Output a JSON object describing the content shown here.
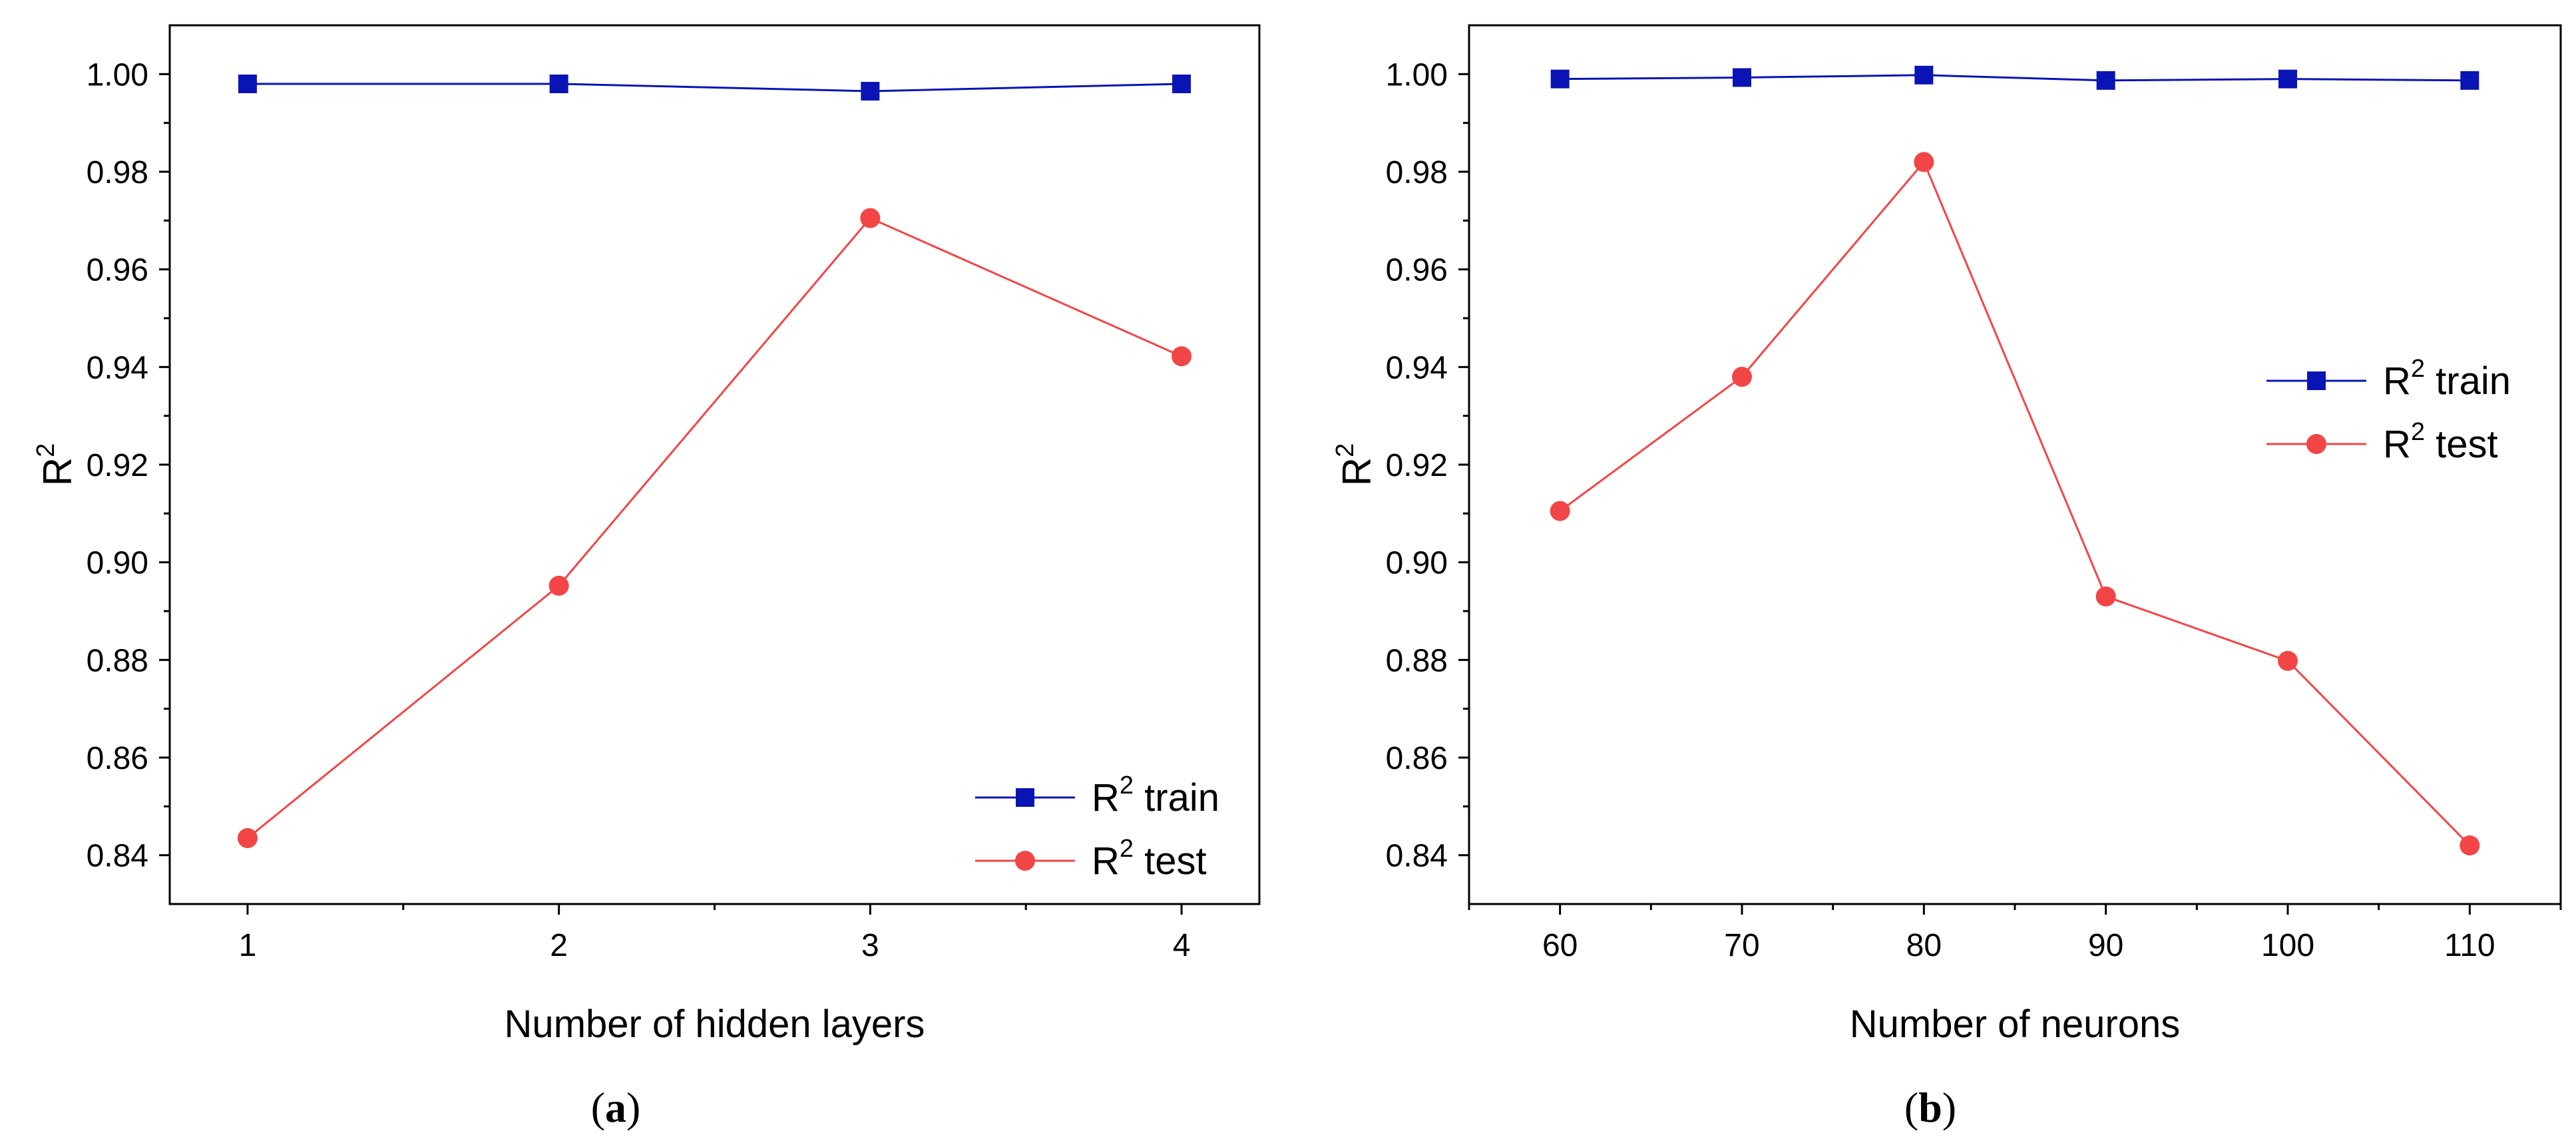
{
  "colors": {
    "train": "#0a14b4",
    "test": "#f24545",
    "axis": "#000000"
  },
  "series_labels": {
    "train_base": "R",
    "train_sup": "2",
    "train_rest": " train",
    "test_base": "R",
    "test_sup": "2",
    "test_rest": " test"
  },
  "chart_data": [
    {
      "type": "line",
      "panel": "(a)",
      "panel_parts": {
        "open": "(",
        "letter": "a",
        "close": ")"
      },
      "xlabel": "Number of hidden layers",
      "ylabel": {
        "base": "R",
        "sup": "2"
      },
      "x": [
        1,
        2,
        3,
        4
      ],
      "xlim": [
        0.75,
        4.25
      ],
      "xticks": [
        1,
        2,
        3,
        4
      ],
      "xminor": [
        1.5,
        2.5,
        3.5
      ],
      "ylim": [
        0.83,
        1.01
      ],
      "yticks": [
        0.84,
        0.86,
        0.88,
        0.9,
        0.92,
        0.94,
        0.96,
        0.98,
        1.0
      ],
      "ytick_labels": [
        "0.84",
        "0.86",
        "0.88",
        "0.90",
        "0.92",
        "0.94",
        "0.96",
        "0.98",
        "1.00"
      ],
      "series": [
        {
          "name": "R2 train",
          "key": "train",
          "marker": "square",
          "values": [
            0.998,
            0.998,
            0.9965,
            0.998
          ]
        },
        {
          "name": "R2 test",
          "key": "test",
          "marker": "circle",
          "values": [
            0.8435,
            0.8952,
            0.9705,
            0.9422
          ]
        }
      ],
      "legend": "bottom-right"
    },
    {
      "type": "line",
      "panel": "(b)",
      "panel_parts": {
        "open": "(",
        "letter": "b",
        "close": ")"
      },
      "xlabel": "Number of neurons",
      "ylabel": {
        "base": "R",
        "sup": "2"
      },
      "x": [
        60,
        70,
        80,
        90,
        100,
        110
      ],
      "xlim": [
        55,
        115
      ],
      "xticks": [
        60,
        70,
        80,
        90,
        100,
        110
      ],
      "xminor": [
        55,
        65,
        75,
        85,
        95,
        105,
        115
      ],
      "ylim": [
        0.83,
        1.01
      ],
      "yticks": [
        0.84,
        0.86,
        0.88,
        0.9,
        0.92,
        0.94,
        0.96,
        0.98,
        1.0
      ],
      "ytick_labels": [
        "0.84",
        "0.86",
        "0.88",
        "0.90",
        "0.92",
        "0.94",
        "0.96",
        "0.98",
        "1.00"
      ],
      "series": [
        {
          "name": "R2 train",
          "key": "train",
          "marker": "square",
          "values": [
            0.999,
            0.9993,
            0.9998,
            0.9987,
            0.999,
            0.9987
          ]
        },
        {
          "name": "R2 test",
          "key": "test",
          "marker": "circle",
          "values": [
            0.9105,
            0.938,
            0.982,
            0.893,
            0.8798,
            0.842
          ]
        }
      ],
      "legend": "center-right"
    }
  ]
}
